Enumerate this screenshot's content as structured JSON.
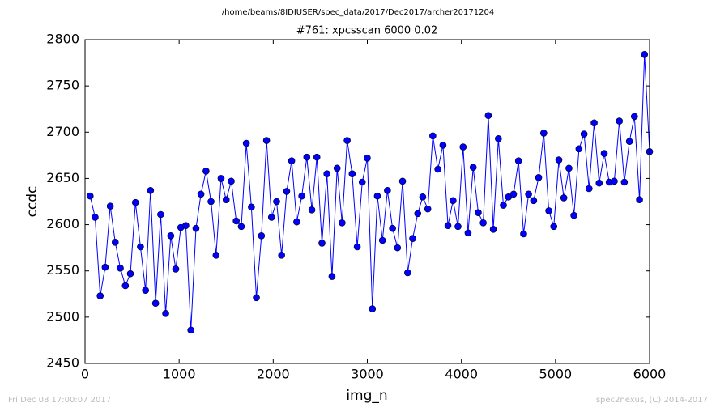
{
  "chart_data": {
    "type": "line",
    "suptitle": "/home/beams/8IDIUSER/spec_data/2017/Dec2017/archer20171204",
    "title": "#761: xpcsscan 6000 0.02",
    "xlabel": "img_n",
    "ylabel": "ccdc",
    "footer_left": "Fri Dec 08 17:00:07 2017",
    "footer_right": "spec2nexus, (C) 2014-2017",
    "color": "#0000ff",
    "marker": true,
    "grid": false,
    "x": [
      54,
      107,
      161,
      214,
      268,
      321,
      375,
      429,
      482,
      536,
      589,
      643,
      696,
      750,
      804,
      857,
      911,
      964,
      1018,
      1071,
      1125,
      1179,
      1232,
      1286,
      1339,
      1393,
      1446,
      1500,
      1554,
      1607,
      1661,
      1714,
      1768,
      1821,
      1875,
      1929,
      1982,
      2036,
      2089,
      2143,
      2196,
      2250,
      2304,
      2357,
      2411,
      2464,
      2518,
      2571,
      2625,
      2679,
      2732,
      2786,
      2839,
      2893,
      2946,
      3000,
      3054,
      3107,
      3161,
      3214,
      3268,
      3321,
      3375,
      3429,
      3482,
      3536,
      3589,
      3643,
      3696,
      3750,
      3804,
      3857,
      3911,
      3964,
      4018,
      4071,
      4125,
      4179,
      4232,
      4286,
      4339,
      4393,
      4446,
      4500,
      4554,
      4607,
      4661,
      4714,
      4768,
      4821,
      4875,
      4929,
      4982,
      5036,
      5089,
      5143,
      5196,
      5250,
      5304,
      5357,
      5411,
      5464,
      5518,
      5571,
      5625,
      5679,
      5732,
      5786,
      5839,
      5893,
      5946,
      6000
    ],
    "values": [
      2631,
      2608,
      2523,
      2554,
      2620,
      2581,
      2553,
      2534,
      2547,
      2624,
      2576,
      2529,
      2637,
      2515,
      2611,
      2504,
      2588,
      2552,
      2597,
      2599,
      2486,
      2596,
      2633,
      2658,
      2625,
      2567,
      2650,
      2627,
      2647,
      2604,
      2598,
      2688,
      2619,
      2521,
      2588,
      2691,
      2608,
      2625,
      2567,
      2636,
      2669,
      2603,
      2631,
      2673,
      2616,
      2673,
      2580,
      2655,
      2544,
      2661,
      2602,
      2691,
      2655,
      2576,
      2646,
      2672,
      2509,
      2631,
      2583,
      2637,
      2596,
      2575,
      2647,
      2548,
      2585,
      2612,
      2630,
      2617,
      2696,
      2660,
      2686,
      2599,
      2626,
      2598,
      2684,
      2591,
      2662,
      2613,
      2602,
      2718,
      2595,
      2693,
      2621,
      2630,
      2633,
      2669,
      2590,
      2633,
      2626,
      2651,
      2699,
      2615,
      2598,
      2670,
      2629,
      2661,
      2610,
      2682,
      2698,
      2639,
      2710,
      2645,
      2677,
      2646,
      2647,
      2712,
      2646,
      2690,
      2717,
      2627,
      2784,
      2679
    ],
    "xlim": [
      0,
      6000
    ],
    "xticks": [
      0,
      1000,
      2000,
      3000,
      4000,
      5000,
      6000
    ],
    "ylim": [
      2450,
      2800
    ],
    "yticks": [
      2450,
      2500,
      2550,
      2600,
      2650,
      2700,
      2750,
      2800
    ]
  }
}
